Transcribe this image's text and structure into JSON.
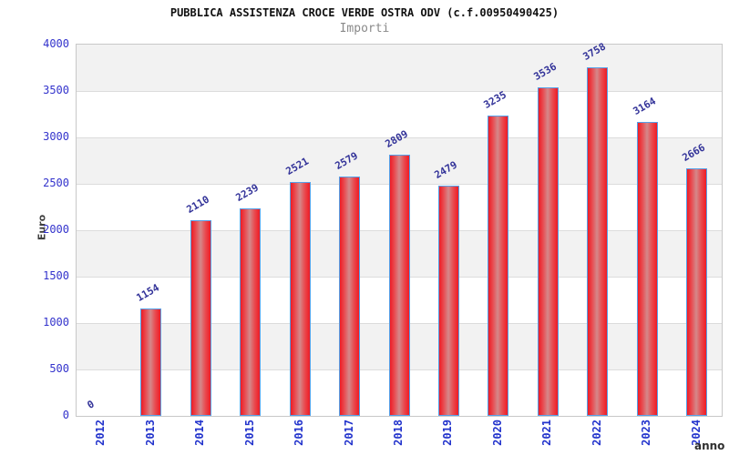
{
  "header": {
    "title": "PUBBLICA ASSISTENZA CROCE VERDE OSTRA ODV (c.f.00950490425)",
    "subtitle": "Importi"
  },
  "chart_data": {
    "type": "bar",
    "title": "PUBBLICA ASSISTENZA CROCE VERDE OSTRA ODV (c.f.00950490425)",
    "subtitle": "Importi",
    "xlabel": "anno",
    "ylabel": "Euro",
    "categories": [
      "2012",
      "2013",
      "2014",
      "2015",
      "2016",
      "2017",
      "2018",
      "2019",
      "2020",
      "2021",
      "2022",
      "2023",
      "2024"
    ],
    "values": [
      0,
      1154,
      2110,
      2239,
      2521,
      2579,
      2809,
      2479,
      3235,
      3536,
      3758,
      3164,
      2666
    ],
    "ylim": [
      0,
      4000
    ],
    "ytick_step": 500,
    "yticks": [
      0,
      500,
      1000,
      1500,
      2000,
      2500,
      3000,
      3500,
      4000
    ],
    "grid": "horizontal gridlines with alternating gray/white bands every 500",
    "legend_position": "none",
    "bar_value_labels_shown": true,
    "bar_value_label_rotation_deg": -30,
    "x_tick_label_rotation_deg": -90
  },
  "colors": {
    "title_text": "#111111",
    "subtitle_text": "#8a8a8a",
    "axis_tick_label": "#3333cc",
    "x_tick_label": "#2233cc",
    "bar_value_label": "#333399",
    "axis_title_text": "#404040",
    "bar_fill_edge": "#ee1c25",
    "bar_fill_center": "#d4888a",
    "bar_border": "#55a0e8",
    "band_gray": "#f2f2f2",
    "band_white": "#ffffff",
    "gridline": "#dcdcdc",
    "plot_border": "#c8c8c8",
    "background": "#ffffff"
  }
}
